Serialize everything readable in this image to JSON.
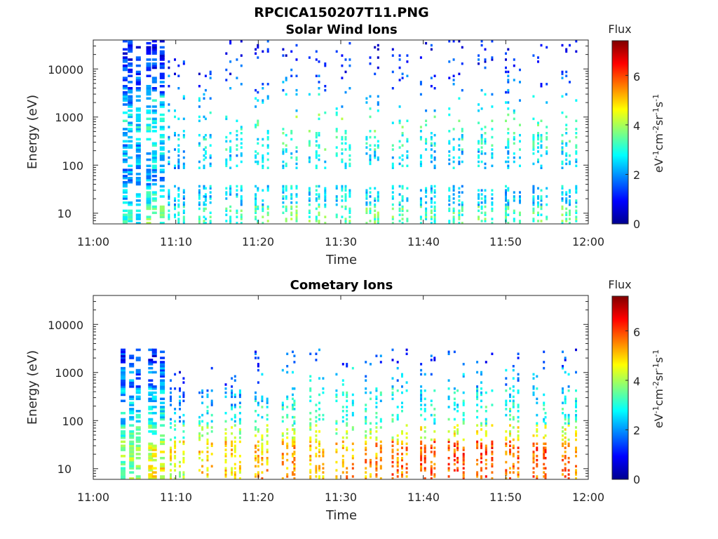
{
  "figure": {
    "title": "RPCICA150207T11.PNG"
  },
  "chart_data": [
    {
      "type": "heatmap",
      "title": "Solar Wind Ions",
      "xlabel": "Time",
      "ylabel": "Energy (eV)",
      "x_ticks": [
        "11:00",
        "11:10",
        "11:20",
        "11:30",
        "11:40",
        "11:50",
        "12:00"
      ],
      "x_range": [
        "11:00",
        "12:00"
      ],
      "y_scale": "log",
      "y_ticks": [
        10,
        100,
        1000,
        10000
      ],
      "y_tick_labels": [
        "10",
        "100",
        "1000",
        "10000"
      ],
      "y_range": [
        6,
        40000
      ],
      "colorbar": {
        "title": "Flux",
        "label": "eV-1cm-2sr-1s-1",
        "range": [
          0,
          7.4
        ],
        "ticks": [
          0,
          2,
          4,
          6
        ],
        "tick_labels": [
          "0",
          "2",
          "4",
          "6"
        ],
        "colormap": "jet"
      },
      "scans": [
        {
          "t": 4.6,
          "flux": [
            3.0,
            2.4,
            2.0,
            2.3,
            2.2,
            2.6,
            2.1,
            1.5,
            1.2,
            1.0
          ]
        },
        {
          "t": 7.6,
          "flux": [
            3.6,
            2.8,
            2.2,
            2.5,
            2.6,
            2.8,
            2.5,
            1.6,
            1.2,
            1.0
          ]
        },
        {
          "t": 10.3,
          "flux": [
            3.0,
            2.2,
            0,
            2.2,
            2.5,
            2.6,
            2.2,
            1.5,
            1.1,
            0
          ]
        },
        {
          "t": 13.7,
          "flux": [
            3.1,
            2.4,
            0,
            2.3,
            2.7,
            2.8,
            2.3,
            1.6,
            1.1,
            0
          ]
        },
        {
          "t": 17.1,
          "flux": [
            3.2,
            2.5,
            0,
            2.4,
            2.9,
            3.0,
            2.4,
            1.6,
            1.2,
            1.0
          ]
        },
        {
          "t": 20.5,
          "flux": [
            3.4,
            2.6,
            0,
            2.6,
            3.0,
            3.3,
            2.5,
            1.7,
            1.2,
            1.0
          ]
        },
        {
          "t": 23.9,
          "flux": [
            3.6,
            2.7,
            0,
            2.7,
            3.2,
            3.6,
            2.6,
            1.7,
            1.2,
            1.0
          ]
        },
        {
          "t": 27.3,
          "flux": [
            3.5,
            2.6,
            0,
            2.6,
            3.1,
            3.5,
            2.6,
            1.7,
            1.2,
            1.0
          ]
        },
        {
          "t": 30.6,
          "flux": [
            3.4,
            2.6,
            0,
            2.6,
            3.1,
            3.6,
            2.6,
            1.7,
            1.2,
            1.0
          ]
        },
        {
          "t": 34.0,
          "flux": [
            3.4,
            2.5,
            0,
            2.5,
            3.0,
            3.4,
            2.5,
            1.6,
            1.2,
            1.0
          ]
        },
        {
          "t": 37.4,
          "flux": [
            3.5,
            2.6,
            0,
            2.5,
            3.0,
            3.3,
            2.4,
            1.6,
            1.2,
            1.0
          ]
        },
        {
          "t": 40.8,
          "flux": [
            3.2,
            2.4,
            0,
            2.3,
            2.8,
            3.1,
            2.3,
            1.5,
            1.1,
            1.0
          ]
        },
        {
          "t": 44.2,
          "flux": [
            3.3,
            2.5,
            0,
            2.4,
            2.9,
            3.2,
            2.4,
            1.6,
            1.2,
            1.0
          ]
        },
        {
          "t": 47.5,
          "flux": [
            3.4,
            2.5,
            0,
            2.4,
            2.9,
            3.2,
            2.4,
            1.6,
            1.2,
            1.0
          ]
        },
        {
          "t": 50.9,
          "flux": [
            3.2,
            2.4,
            0,
            2.4,
            2.9,
            3.3,
            2.4,
            1.6,
            1.2,
            1.0
          ]
        },
        {
          "t": 54.3,
          "flux": [
            3.3,
            2.5,
            0,
            2.5,
            3.0,
            3.3,
            2.5,
            1.6,
            1.2,
            1.0
          ]
        },
        {
          "t": 57.7,
          "flux": [
            3.4,
            2.5,
            0,
            2.5,
            3.0,
            3.4,
            2.5,
            1.6,
            1.2,
            1.0
          ]
        }
      ]
    },
    {
      "type": "heatmap",
      "title": "Cometary Ions",
      "xlabel": "Time",
      "ylabel": "Energy (eV)",
      "x_ticks": [
        "11:00",
        "11:10",
        "11:20",
        "11:30",
        "11:40",
        "11:50",
        "12:00"
      ],
      "x_range": [
        "11:00",
        "12:00"
      ],
      "y_scale": "log",
      "y_ticks": [
        10,
        100,
        1000,
        10000
      ],
      "y_tick_labels": [
        "10",
        "100",
        "1000",
        "10000"
      ],
      "y_range": [
        6,
        40000
      ],
      "colorbar": {
        "title": "Flux",
        "label": "eV-1cm-2sr-1s-1",
        "range": [
          0,
          7.4
        ],
        "ticks": [
          0,
          2,
          4,
          6
        ],
        "tick_labels": [
          "0",
          "2",
          "4",
          "6"
        ],
        "colormap": "jet"
      },
      "scans": [
        {
          "t": 4.6,
          "flux": [
            3.6,
            3.8,
            3.2,
            2.6,
            2.3,
            1.8,
            1.2,
            0,
            0,
            0
          ]
        },
        {
          "t": 7.6,
          "flux": [
            4.6,
            4.4,
            3.4,
            2.8,
            2.4,
            1.8,
            1.2,
            0,
            0,
            0
          ]
        },
        {
          "t": 10.3,
          "flux": [
            4.2,
            4.6,
            3.6,
            2.4,
            1.8,
            1.2,
            0,
            0,
            0,
            0
          ]
        },
        {
          "t": 13.7,
          "flux": [
            5.0,
            4.8,
            3.8,
            2.6,
            1.9,
            1.4,
            0,
            0,
            0,
            0
          ]
        },
        {
          "t": 17.1,
          "flux": [
            4.8,
            4.9,
            3.9,
            2.8,
            2.2,
            1.6,
            0,
            0,
            0,
            0
          ]
        },
        {
          "t": 20.5,
          "flux": [
            5.2,
            5.0,
            4.0,
            3.0,
            2.6,
            2.0,
            1.4,
            0,
            0,
            0
          ]
        },
        {
          "t": 23.9,
          "flux": [
            5.3,
            5.2,
            4.1,
            3.1,
            2.8,
            2.4,
            1.5,
            0,
            0,
            0
          ]
        },
        {
          "t": 27.3,
          "flux": [
            5.2,
            5.1,
            4.0,
            3.1,
            2.9,
            2.5,
            1.6,
            0,
            0,
            0
          ]
        },
        {
          "t": 30.6,
          "flux": [
            5.4,
            5.2,
            4.0,
            3.0,
            2.9,
            2.4,
            1.5,
            0,
            0,
            0
          ]
        },
        {
          "t": 34.0,
          "flux": [
            5.3,
            5.3,
            4.1,
            3.1,
            2.8,
            2.3,
            1.4,
            0,
            0,
            0
          ]
        },
        {
          "t": 37.4,
          "flux": [
            5.6,
            5.5,
            4.3,
            3.1,
            2.8,
            2.2,
            1.4,
            0,
            0,
            0
          ]
        },
        {
          "t": 40.8,
          "flux": [
            5.7,
            5.8,
            4.4,
            3.0,
            2.6,
            2.0,
            1.3,
            0,
            0,
            0
          ]
        },
        {
          "t": 44.2,
          "flux": [
            5.8,
            5.9,
            4.5,
            3.1,
            2.7,
            2.1,
            1.3,
            0,
            0,
            0
          ]
        },
        {
          "t": 47.5,
          "flux": [
            5.9,
            6.0,
            4.6,
            3.1,
            2.7,
            2.1,
            1.3,
            0,
            0,
            0
          ]
        },
        {
          "t": 50.9,
          "flux": [
            5.7,
            5.8,
            4.5,
            3.1,
            2.7,
            2.1,
            1.3,
            0,
            0,
            0
          ]
        },
        {
          "t": 54.3,
          "flux": [
            5.8,
            5.8,
            4.4,
            3.0,
            2.7,
            2.2,
            1.4,
            0,
            0,
            0
          ]
        },
        {
          "t": 57.7,
          "flux": [
            5.5,
            5.6,
            4.3,
            3.0,
            2.7,
            2.1,
            1.3,
            0,
            0,
            0
          ]
        }
      ]
    }
  ]
}
